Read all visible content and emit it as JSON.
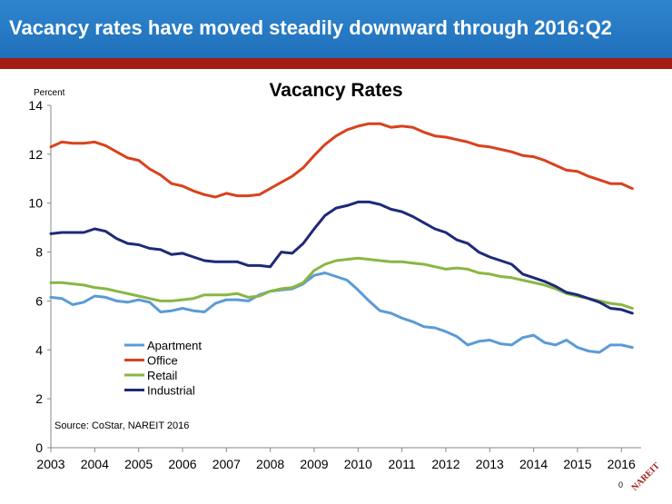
{
  "slide": {
    "title": "Vacancy rates have moved steadily downward through 2016:Q2",
    "page_number": "0",
    "logo_text": "NAREIT"
  },
  "colors": {
    "header": "#1f6fb9",
    "header_rule": "#a31d14",
    "Apartment": "#5b9bd5",
    "Office": "#d8421c",
    "Retail": "#8ab642",
    "Industrial": "#1e2a78"
  },
  "chart_data": {
    "type": "line",
    "title": "Vacancy Rates",
    "ylabel": "Percent",
    "ylim": [
      0,
      14
    ],
    "yticks": [
      0,
      2,
      4,
      6,
      8,
      10,
      12,
      14
    ],
    "xlim": [
      2003,
      2016.45
    ],
    "xticks": [
      2003,
      2004,
      2005,
      2006,
      2007,
      2008,
      2009,
      2010,
      2011,
      2012,
      2013,
      2014,
      2015,
      2016
    ],
    "x_start": 2003,
    "x_step": 0.25,
    "grid": false,
    "legend_position": "bottom-left",
    "source": "Source: CoStar, NAREIT 2016",
    "series": [
      {
        "name": "Apartment",
        "values": [
          6.15,
          6.1,
          5.85,
          5.95,
          6.2,
          6.15,
          6.0,
          5.95,
          6.05,
          5.95,
          5.55,
          5.6,
          5.7,
          5.6,
          5.55,
          5.9,
          6.05,
          6.05,
          6.0,
          6.25,
          6.4,
          6.45,
          6.5,
          6.7,
          7.05,
          7.15,
          7.0,
          6.85,
          6.45,
          6.0,
          5.6,
          5.5,
          5.3,
          5.15,
          4.95,
          4.9,
          4.75,
          4.55,
          4.2,
          4.35,
          4.4,
          4.25,
          4.2,
          4.5,
          4.6,
          4.3,
          4.2,
          4.4,
          4.1,
          3.95,
          3.9,
          4.2,
          4.2,
          4.1
        ]
      },
      {
        "name": "Office",
        "values": [
          12.3,
          12.5,
          12.45,
          12.45,
          12.5,
          12.35,
          12.1,
          11.85,
          11.75,
          11.4,
          11.15,
          10.8,
          10.7,
          10.5,
          10.35,
          10.25,
          10.4,
          10.3,
          10.3,
          10.35,
          10.6,
          10.85,
          11.1,
          11.45,
          11.95,
          12.4,
          12.75,
          13.0,
          13.15,
          13.25,
          13.25,
          13.1,
          13.15,
          13.1,
          12.9,
          12.75,
          12.7,
          12.6,
          12.5,
          12.35,
          12.3,
          12.2,
          12.1,
          11.95,
          11.9,
          11.75,
          11.55,
          11.35,
          11.3,
          11.1,
          10.95,
          10.8,
          10.8,
          10.6
        ]
      },
      {
        "name": "Retail",
        "values": [
          6.75,
          6.75,
          6.7,
          6.65,
          6.55,
          6.5,
          6.4,
          6.3,
          6.2,
          6.1,
          6.0,
          6.0,
          6.05,
          6.1,
          6.25,
          6.25,
          6.25,
          6.3,
          6.15,
          6.2,
          6.4,
          6.5,
          6.55,
          6.75,
          7.25,
          7.5,
          7.65,
          7.7,
          7.75,
          7.7,
          7.65,
          7.6,
          7.6,
          7.55,
          7.5,
          7.4,
          7.3,
          7.35,
          7.3,
          7.15,
          7.1,
          7.0,
          6.95,
          6.85,
          6.75,
          6.65,
          6.5,
          6.3,
          6.2,
          6.1,
          6.0,
          5.9,
          5.85,
          5.7
        ]
      },
      {
        "name": "Industrial",
        "values": [
          8.75,
          8.8,
          8.8,
          8.8,
          8.95,
          8.85,
          8.55,
          8.35,
          8.3,
          8.15,
          8.1,
          7.9,
          7.95,
          7.8,
          7.65,
          7.6,
          7.6,
          7.6,
          7.45,
          7.45,
          7.4,
          8.0,
          7.95,
          8.35,
          8.95,
          9.5,
          9.8,
          9.9,
          10.05,
          10.05,
          9.95,
          9.75,
          9.65,
          9.45,
          9.2,
          8.95,
          8.8,
          8.5,
          8.35,
          8.0,
          7.8,
          7.65,
          7.5,
          7.1,
          6.95,
          6.8,
          6.6,
          6.35,
          6.25,
          6.1,
          5.95,
          5.7,
          5.65,
          5.5
        ]
      }
    ]
  }
}
